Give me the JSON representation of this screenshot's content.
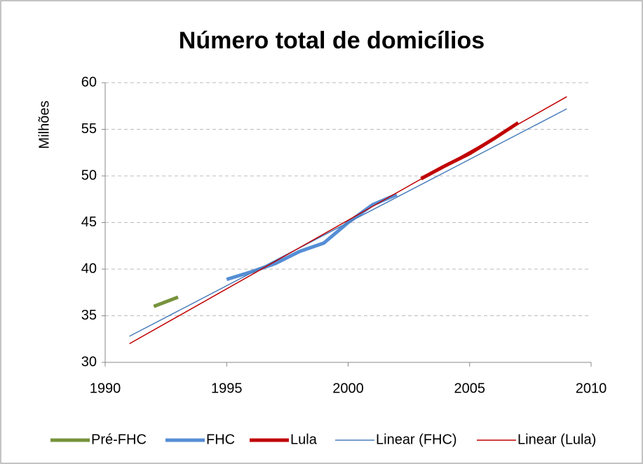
{
  "chart_data": {
    "type": "line",
    "title": "Número total de domicílios",
    "y_label": "Milhões",
    "xlim": [
      1990,
      2010
    ],
    "xticks": [
      1990,
      1995,
      2000,
      2005,
      2010
    ],
    "ylim": [
      30,
      60
    ],
    "yticks": [
      30,
      35,
      40,
      45,
      50,
      55,
      60
    ],
    "grid": true,
    "legend": "bottom",
    "series": [
      {
        "name": "Pré-FHC",
        "color": "#77933c",
        "width": 5,
        "x": [
          1992,
          1993
        ],
        "values": [
          36.0,
          37.0
        ]
      },
      {
        "name": "FHC",
        "color": "#558ed5",
        "width": 5,
        "x": [
          1995,
          1996,
          1997,
          1998,
          1999,
          2000,
          2001,
          2002
        ],
        "values": [
          38.9,
          39.7,
          40.6,
          41.9,
          42.8,
          45.0,
          46.9,
          48.0
        ]
      },
      {
        "name": "Lula",
        "color": "#c00000",
        "width": 5,
        "x": [
          2003,
          2004,
          2005,
          2006,
          2007
        ],
        "values": [
          49.7,
          51.1,
          52.4,
          54.0,
          55.7
        ]
      },
      {
        "name": "Linear (FHC)",
        "color": "#4a7ebb",
        "width": 1.5,
        "x": [
          1991,
          2009
        ],
        "values": [
          32.8,
          57.2
        ]
      },
      {
        "name": "Linear (Lula)",
        "color": "#c00000",
        "width": 1.5,
        "x": [
          1991,
          2009
        ],
        "values": [
          32.0,
          58.5
        ]
      }
    ]
  }
}
